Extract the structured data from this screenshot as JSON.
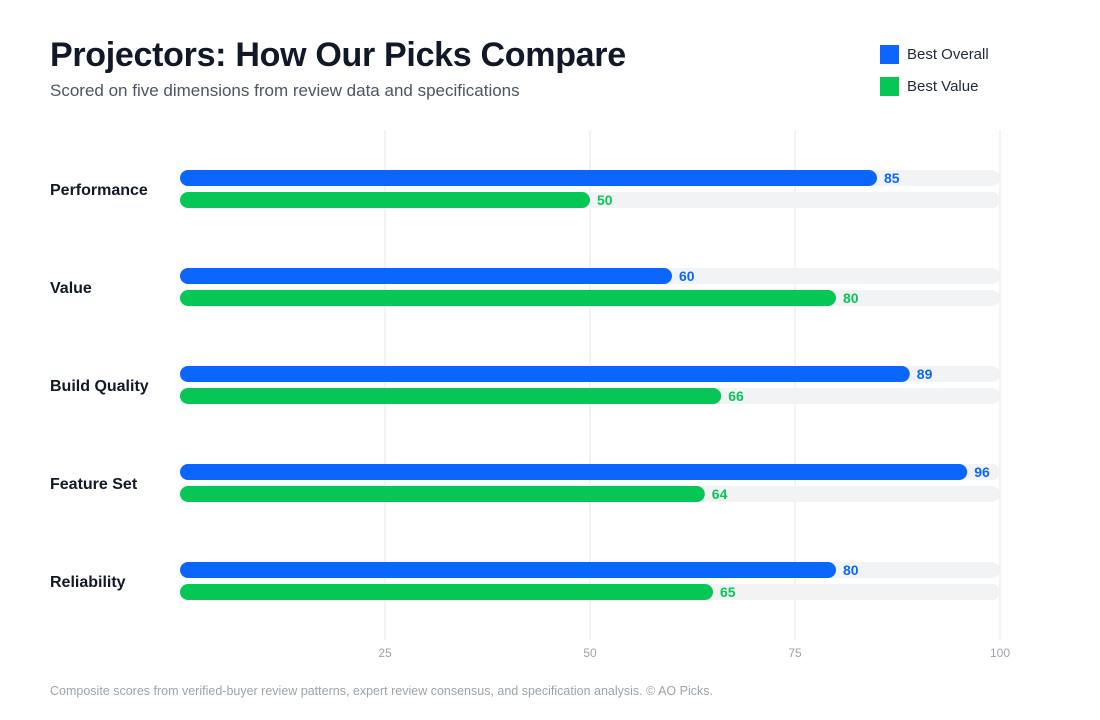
{
  "header": {
    "title": "Projectors: How Our Picks Compare",
    "subtitle": "Scored on five dimensions from review data and specifications"
  },
  "footnote": "Composite scores from verified-buyer review patterns, expert review consensus, and specification analysis. © AO Picks.",
  "colors": {
    "best_overall": "#0a66ff",
    "best_value": "#06c755",
    "track": "#f2f3f5",
    "grid": "#e5e7eb"
  },
  "chart_data": {
    "type": "bar",
    "orientation": "horizontal",
    "title": "Projectors: How Our Picks Compare",
    "subtitle": "Scored on five dimensions from review data and specifications",
    "categories": [
      "Performance",
      "Value",
      "Build Quality",
      "Feature Set",
      "Reliability"
    ],
    "series": [
      {
        "name": "Best Overall",
        "color": "#0a66ff",
        "values": [
          85,
          60,
          89,
          96,
          80
        ]
      },
      {
        "name": "Best Value",
        "color": "#06c755",
        "values": [
          50,
          80,
          66,
          64,
          65
        ]
      }
    ],
    "xlim": [
      0,
      100
    ],
    "xticks": [
      25,
      50,
      75,
      100
    ],
    "grid": true,
    "legend": "top-right",
    "data_labels": true
  }
}
